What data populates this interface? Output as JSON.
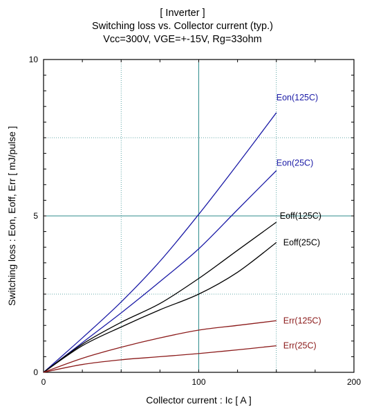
{
  "chart_data": {
    "type": "line",
    "title": "[ Inverter ]",
    "subtitle_lines": [
      "Switching loss  vs.  Collector current  (typ.)",
      "Vcc=300V, VGE=+-15V, Rg=33ohm"
    ],
    "xlabel": "Collector current  :  Ic  [ A ]",
    "ylabel": "Switching loss  :  Eon, Eoff, Err  [ mJ/pulse ]",
    "xlim": [
      0,
      200
    ],
    "ylim": [
      0,
      10
    ],
    "xticks": [
      0,
      100,
      200
    ],
    "yticks": [
      0,
      5,
      10
    ],
    "grid": true,
    "series": [
      {
        "name": "Eon(125C)",
        "color": "#1a1aa6",
        "points": [
          [
            0,
            0
          ],
          [
            25,
            1.1
          ],
          [
            50,
            2.25
          ],
          [
            75,
            3.55
          ],
          [
            100,
            5.05
          ],
          [
            125,
            6.65
          ],
          [
            150,
            8.3
          ]
        ]
      },
      {
        "name": "Eon(25C)",
        "color": "#1a1aa6",
        "points": [
          [
            0,
            0
          ],
          [
            25,
            0.95
          ],
          [
            50,
            1.9
          ],
          [
            75,
            2.9
          ],
          [
            100,
            3.95
          ],
          [
            125,
            5.2
          ],
          [
            150,
            6.45
          ]
        ]
      },
      {
        "name": "Eoff(125C)",
        "color": "#000000",
        "points": [
          [
            0,
            0
          ],
          [
            25,
            0.9
          ],
          [
            50,
            1.6
          ],
          [
            75,
            2.2
          ],
          [
            100,
            3.0
          ],
          [
            125,
            3.9
          ],
          [
            150,
            4.8
          ]
        ]
      },
      {
        "name": "Eoff(25C)",
        "color": "#000000",
        "points": [
          [
            0,
            0
          ],
          [
            25,
            0.85
          ],
          [
            50,
            1.45
          ],
          [
            75,
            2.0
          ],
          [
            100,
            2.5
          ],
          [
            125,
            3.2
          ],
          [
            150,
            4.15
          ]
        ]
      },
      {
        "name": "Err(125C)",
        "color": "#8b1a1a",
        "points": [
          [
            0,
            0
          ],
          [
            25,
            0.45
          ],
          [
            50,
            0.8
          ],
          [
            75,
            1.1
          ],
          [
            100,
            1.35
          ],
          [
            125,
            1.5
          ],
          [
            150,
            1.65
          ]
        ]
      },
      {
        "name": "Err(25C)",
        "color": "#8b1a1a",
        "points": [
          [
            0,
            0
          ],
          [
            25,
            0.25
          ],
          [
            50,
            0.4
          ],
          [
            75,
            0.5
          ],
          [
            100,
            0.6
          ],
          [
            125,
            0.72
          ],
          [
            150,
            0.85
          ]
        ]
      }
    ]
  }
}
